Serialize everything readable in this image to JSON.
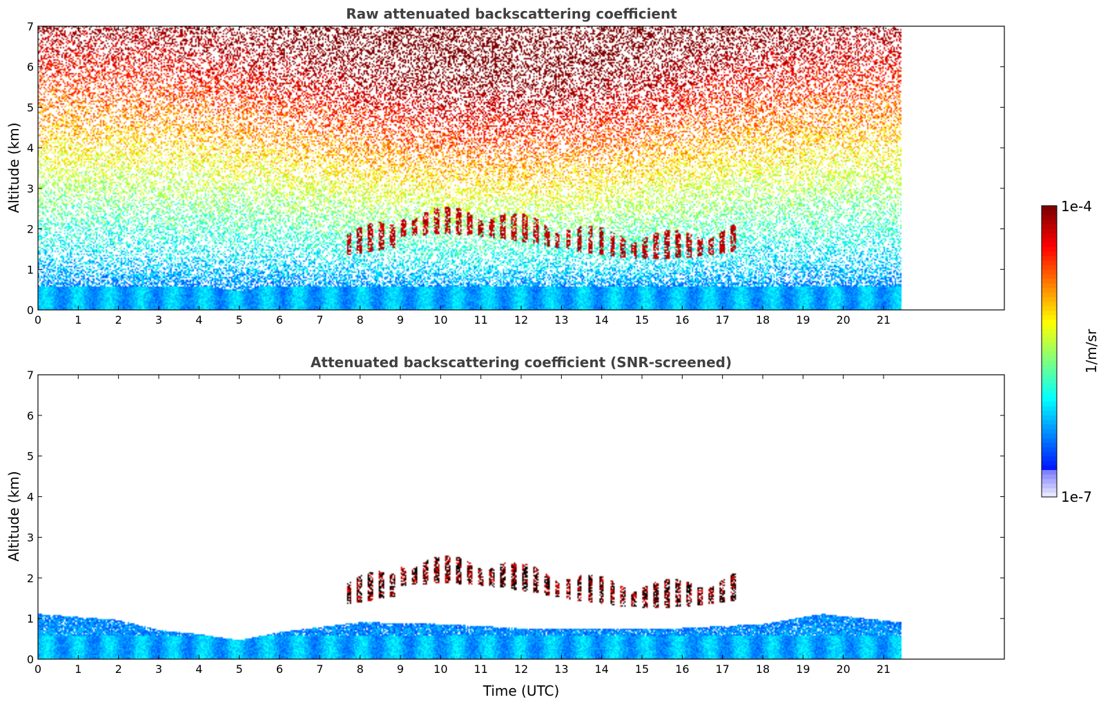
{
  "chart_data": [
    {
      "type": "heatmap",
      "title": "Raw attenuated backscattering coefficient",
      "xlabel": "",
      "ylabel": "Altitude (km)",
      "xlim": [
        0,
        24
      ],
      "ylim": [
        0,
        7
      ],
      "x_ticks": [
        0,
        1,
        2,
        3,
        4,
        5,
        6,
        7,
        8,
        9,
        10,
        11,
        12,
        13,
        14,
        15,
        16,
        17,
        18,
        19,
        20,
        21
      ],
      "y_ticks": [
        0,
        1,
        2,
        3,
        4,
        5,
        6,
        7
      ],
      "data_extent_time_utc": [
        0,
        21.45
      ],
      "layers": [
        {
          "name": "boundary layer",
          "top_km": 0.5,
          "level": "low-mid"
        },
        {
          "name": "cloud layer",
          "time_range": [
            7.5,
            17.4
          ],
          "altitude_km": [
            1.3,
            2.4
          ],
          "level": "saturated"
        },
        {
          "name": "noise above 3 km",
          "level": "high"
        }
      ]
    },
    {
      "type": "heatmap",
      "title": "Attenuated backscattering coefficient (SNR-screened)",
      "xlabel": "Time (UTC)",
      "ylabel": "Altitude (km)",
      "xlim": [
        0,
        24
      ],
      "ylim": [
        0,
        7
      ],
      "x_ticks": [
        0,
        1,
        2,
        3,
        4,
        5,
        6,
        7,
        8,
        9,
        10,
        11,
        12,
        13,
        14,
        15,
        16,
        17,
        18,
        19,
        20,
        21
      ],
      "y_ticks": [
        0,
        1,
        2,
        3,
        4,
        5,
        6,
        7
      ],
      "data_extent_time_utc": [
        0,
        21.45
      ],
      "layers": [
        {
          "name": "boundary layer",
          "top_km_profile": [
            [
              0,
              1.1
            ],
            [
              2,
              0.95
            ],
            [
              3,
              0.7
            ],
            [
              4,
              0.6
            ],
            [
              5,
              0.45
            ],
            [
              6,
              0.65
            ],
            [
              8,
              0.9
            ],
            [
              10,
              0.85
            ],
            [
              12,
              0.75
            ],
            [
              14,
              0.75
            ],
            [
              16,
              0.75
            ],
            [
              18,
              0.85
            ],
            [
              19.5,
              1.1
            ],
            [
              21.4,
              0.9
            ]
          ]
        },
        {
          "name": "cloud layer",
          "time_range": [
            7.5,
            17.4
          ],
          "altitude_km": [
            1.3,
            2.4
          ]
        }
      ]
    }
  ],
  "colorbar": {
    "label": "1/m/sr",
    "max_label": "1e-4",
    "min_label": "1e-7",
    "scale": "log",
    "range": [
      1e-07,
      0.0001
    ],
    "colormap": "jet"
  }
}
